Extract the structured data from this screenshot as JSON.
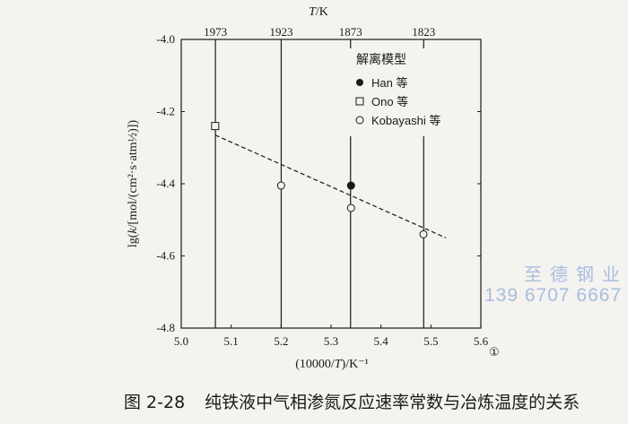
{
  "chart_data": {
    "type": "scatter",
    "top_axis_label": "T/K",
    "top_ticks": [
      "1973",
      "1923",
      "1873",
      "1823"
    ],
    "top_tick_values": [
      1973,
      1923,
      1873,
      1823
    ],
    "xlabel": "(10000/T)/K⁻¹",
    "ylabel": "lg(k/[mol/(cm²·s·atm½)])",
    "xlim": [
      5.0,
      5.6
    ],
    "ylim": [
      -4.8,
      -4.0
    ],
    "x_ticks": [
      "5.0",
      "5.1",
      "5.2",
      "5.3",
      "5.4",
      "5.5",
      "5.6"
    ],
    "y_ticks": [
      "-4.0",
      "-4.2",
      "-4.4",
      "-4.6",
      "-4.8"
    ],
    "legend_title": "解离模型",
    "series": [
      {
        "name": "Han 等",
        "marker": "filled-circle",
        "points": [
          [
            5.34,
            -4.405
          ]
        ]
      },
      {
        "name": "Ono 等",
        "marker": "open-square",
        "points": [
          [
            5.068,
            -4.24
          ]
        ]
      },
      {
        "name": "Kobayashi 等",
        "marker": "open-circle",
        "points": [
          [
            5.2,
            -4.405
          ],
          [
            5.34,
            -4.467
          ],
          [
            5.485,
            -4.54
          ]
        ]
      }
    ],
    "fit_line": {
      "style": "dashed",
      "points": [
        [
          5.068,
          -4.265
        ],
        [
          5.53,
          -4.55
        ]
      ]
    },
    "legend_position": "top-right"
  },
  "footnote_mark": "①",
  "watermark": {
    "line1": "至德钢业",
    "line2": "139 6707 6667"
  },
  "caption": {
    "number": "图 2-28",
    "text": "纯铁液中气相渗氮反应速率常数与冶炼温度的关系"
  }
}
